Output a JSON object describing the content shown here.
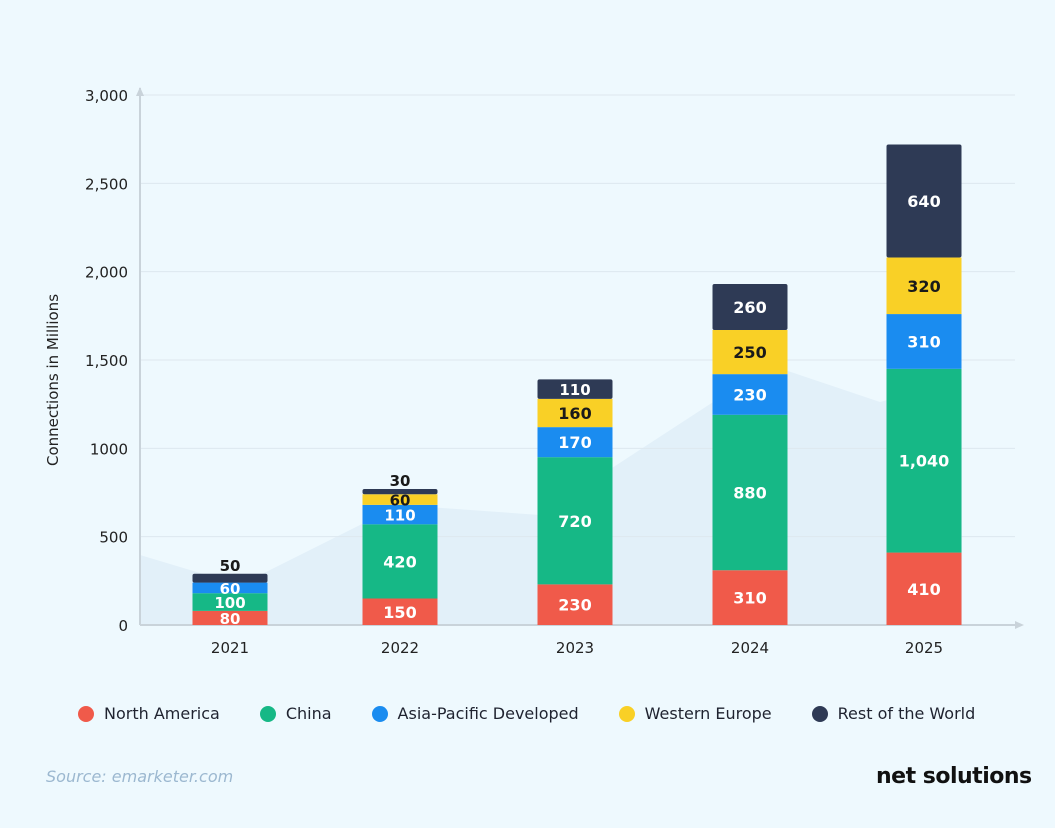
{
  "chart_data": {
    "type": "bar",
    "stacked": true,
    "title": "",
    "xlabel": "",
    "ylabel": "Connections in Millions",
    "ylim": [
      0,
      3000
    ],
    "yticks": [
      "0",
      "500",
      "1000",
      "1,500",
      "2,000",
      "2,500",
      "3,000"
    ],
    "ytick_values": [
      0,
      500,
      1000,
      1500,
      2000,
      2500,
      3000
    ],
    "categories": [
      "2021",
      "2022",
      "2023",
      "2024",
      "2025"
    ],
    "series": [
      {
        "name": "North America",
        "color": "#f05a4a",
        "values": [
          80,
          150,
          230,
          310,
          410
        ],
        "labels": [
          "80",
          "150",
          "230",
          "310",
          "410"
        ]
      },
      {
        "name": "China",
        "color": "#16b886",
        "values": [
          100,
          420,
          720,
          880,
          1040
        ],
        "labels": [
          "100",
          "420",
          "720",
          "880",
          "1,040"
        ]
      },
      {
        "name": "Asia-Pacific Developed",
        "color": "#1a8cf0",
        "values": [
          60,
          110,
          170,
          230,
          310
        ],
        "labels": [
          "60",
          "110",
          "170",
          "230",
          "310"
        ]
      },
      {
        "name": "Western Europe",
        "color": "#f9d026",
        "values": [
          0,
          60,
          160,
          250,
          320
        ],
        "labels": [
          "",
          "60",
          "160",
          "250",
          "320"
        ]
      },
      {
        "name": "Rest of the World",
        "color": "#2e3a55",
        "values": [
          50,
          30,
          110,
          260,
          640
        ],
        "labels": [
          "50",
          "30",
          "110",
          "260",
          "640"
        ]
      }
    ],
    "grid": true,
    "legend": "bottom"
  },
  "source": "Source: emarketer.com",
  "logo": "net solutions"
}
